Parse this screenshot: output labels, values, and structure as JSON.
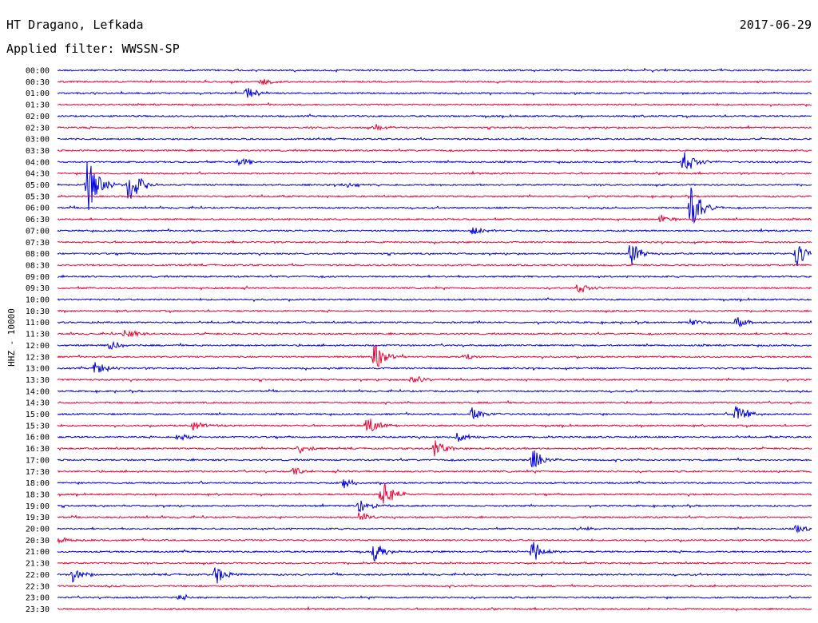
{
  "header": {
    "station": "HT Dragano, Lefkada",
    "date": "2017-06-29",
    "filter": "Applied filter: WWSSN-SP"
  },
  "chart_data": {
    "type": "line",
    "subtype": "helicorder",
    "ylabel": "HHZ - 10000",
    "row_labels": [
      "00:00",
      "00:30",
      "01:00",
      "01:30",
      "02:00",
      "02:30",
      "03:00",
      "03:30",
      "04:00",
      "04:30",
      "05:00",
      "05:30",
      "06:00",
      "06:30",
      "07:00",
      "07:30",
      "08:00",
      "08:30",
      "09:00",
      "09:30",
      "10:00",
      "10:30",
      "11:00",
      "11:30",
      "12:00",
      "12:30",
      "13:00",
      "13:30",
      "14:00",
      "14:30",
      "15:00",
      "15:30",
      "16:00",
      "16:30",
      "17:00",
      "17:30",
      "18:00",
      "18:30",
      "19:00",
      "19:30",
      "20:00",
      "20:30",
      "21:00",
      "21:30",
      "22:00",
      "22:30",
      "23:00",
      "23:30"
    ],
    "colors": {
      "even": "#0000dd",
      "odd": "#ee0033"
    },
    "events": [
      {
        "row": 1,
        "pos": 0.27,
        "amp": 0.35
      },
      {
        "row": 2,
        "pos": 0.25,
        "amp": 0.6
      },
      {
        "row": 5,
        "pos": 0.42,
        "amp": 0.3
      },
      {
        "row": 8,
        "pos": 0.24,
        "amp": 0.5
      },
      {
        "row": 8,
        "pos": 0.83,
        "amp": 1.2
      },
      {
        "row": 10,
        "pos": 0.04,
        "amp": 2.5
      },
      {
        "row": 10,
        "pos": 0.094,
        "amp": 2.0
      },
      {
        "row": 10,
        "pos": 0.38,
        "amp": 0.3
      },
      {
        "row": 12,
        "pos": 0.84,
        "amp": 2.0
      },
      {
        "row": 13,
        "pos": 0.8,
        "amp": 0.4
      },
      {
        "row": 14,
        "pos": 0.55,
        "amp": 0.4
      },
      {
        "row": 16,
        "pos": 0.76,
        "amp": 1.1
      },
      {
        "row": 16,
        "pos": 0.98,
        "amp": 1.2
      },
      {
        "row": 19,
        "pos": 0.69,
        "amp": 0.6
      },
      {
        "row": 22,
        "pos": 0.84,
        "amp": 0.4
      },
      {
        "row": 22,
        "pos": 0.9,
        "amp": 0.5
      },
      {
        "row": 23,
        "pos": 0.09,
        "amp": 0.5
      },
      {
        "row": 24,
        "pos": 0.07,
        "amp": 0.5
      },
      {
        "row": 25,
        "pos": 0.42,
        "amp": 1.3
      },
      {
        "row": 25,
        "pos": 0.54,
        "amp": 0.4
      },
      {
        "row": 26,
        "pos": 0.05,
        "amp": 0.7
      },
      {
        "row": 27,
        "pos": 0.47,
        "amp": 0.6
      },
      {
        "row": 30,
        "pos": 0.55,
        "amp": 0.6
      },
      {
        "row": 30,
        "pos": 0.9,
        "amp": 1.0
      },
      {
        "row": 31,
        "pos": 0.18,
        "amp": 0.5
      },
      {
        "row": 31,
        "pos": 0.41,
        "amp": 0.9
      },
      {
        "row": 32,
        "pos": 0.16,
        "amp": 0.4
      },
      {
        "row": 32,
        "pos": 0.53,
        "amp": 0.6
      },
      {
        "row": 33,
        "pos": 0.5,
        "amp": 0.9
      },
      {
        "row": 33,
        "pos": 0.32,
        "amp": 0.5
      },
      {
        "row": 34,
        "pos": 0.63,
        "amp": 1.2
      },
      {
        "row": 35,
        "pos": 0.31,
        "amp": 0.5
      },
      {
        "row": 36,
        "pos": 0.38,
        "amp": 0.5
      },
      {
        "row": 37,
        "pos": 0.43,
        "amp": 1.4
      },
      {
        "row": 38,
        "pos": 0.4,
        "amp": 0.8
      },
      {
        "row": 39,
        "pos": 0.4,
        "amp": 0.5
      },
      {
        "row": 40,
        "pos": 0.69,
        "amp": 0.3
      },
      {
        "row": 40,
        "pos": 0.98,
        "amp": 0.4
      },
      {
        "row": 41,
        "pos": 0.0,
        "amp": 0.4
      },
      {
        "row": 42,
        "pos": 0.42,
        "amp": 0.9
      },
      {
        "row": 42,
        "pos": 0.63,
        "amp": 1.1
      },
      {
        "row": 44,
        "pos": 0.02,
        "amp": 0.7
      },
      {
        "row": 44,
        "pos": 0.21,
        "amp": 0.9
      },
      {
        "row": 46,
        "pos": 0.16,
        "amp": 0.3
      }
    ]
  }
}
